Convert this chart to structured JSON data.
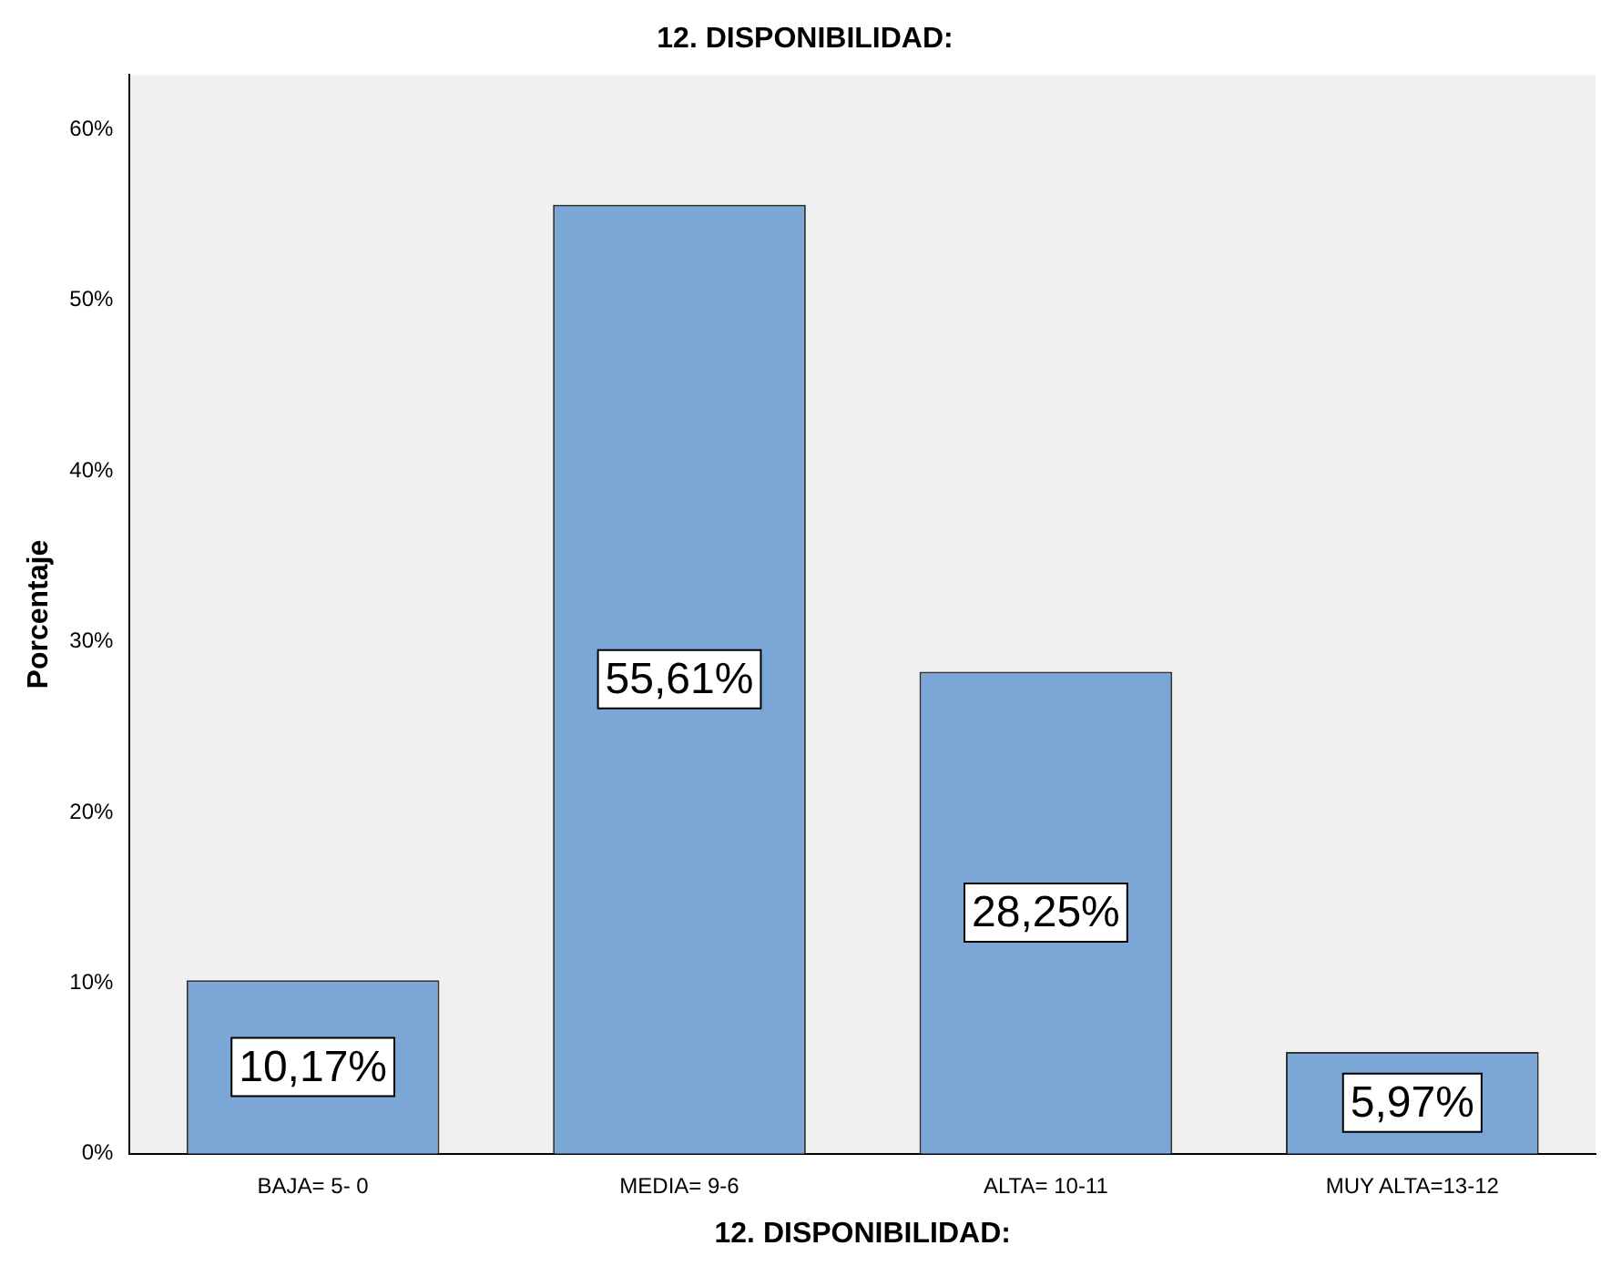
{
  "chart_data": {
    "type": "bar",
    "title": "12. DISPONIBILIDAD:",
    "xlabel": "12. DISPONIBILIDAD:",
    "ylabel": "Porcentaje",
    "categories": [
      "BAJA= 5- 0",
      "MEDIA= 9-6",
      "ALTA= 10-11",
      "MUY ALTA=13-12"
    ],
    "values": [
      10.17,
      55.61,
      28.25,
      5.97
    ],
    "value_labels": [
      "10,17%",
      "55,61%",
      "28,25%",
      "5,97%"
    ],
    "color": "#7aa7d6",
    "ylim": [
      0,
      63.2
    ],
    "yticks": [
      {
        "value": 0,
        "label": "0%"
      },
      {
        "value": 10,
        "label": "10%"
      },
      {
        "value": 20,
        "label": "20%"
      },
      {
        "value": 30,
        "label": "30%"
      },
      {
        "value": 40,
        "label": "40%"
      },
      {
        "value": 50,
        "label": "50%"
      },
      {
        "value": 60,
        "label": "60%"
      }
    ],
    "grid": false,
    "legend": false
  }
}
